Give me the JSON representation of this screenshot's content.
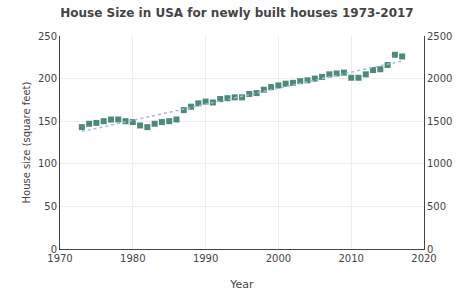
{
  "chart_data": {
    "type": "scatter",
    "title": "House Size in USA for newly built houses 1973-2017",
    "xlabel": "Year",
    "ylabel": "House size (square feet)",
    "series": [
      {
        "type": "scatter",
        "color": "#4d8a7a",
        "marker": "square",
        "x": [
          1973,
          1974,
          1975,
          1976,
          1977,
          1978,
          1979,
          1980,
          1981,
          1982,
          1983,
          1984,
          1985,
          1986,
          1987,
          1988,
          1989,
          1990,
          1991,
          1992,
          1993,
          1994,
          1995,
          1996,
          1997,
          1998,
          1999,
          2000,
          2001,
          2002,
          2003,
          2004,
          2005,
          2006,
          2007,
          2008,
          2009,
          2010,
          2011,
          2012,
          2013,
          2014,
          2015,
          2016,
          2017
        ],
        "values": [
          143,
          147,
          148,
          150,
          152,
          152,
          150,
          149,
          145,
          143,
          147,
          149,
          150,
          152,
          163,
          167,
          171,
          173,
          172,
          176,
          177,
          178,
          178,
          182,
          183,
          187,
          190,
          192,
          194,
          195,
          197,
          198,
          200,
          202,
          205,
          206,
          207,
          201,
          201,
          205,
          210,
          211,
          216,
          228,
          226
        ]
      },
      {
        "type": "line",
        "color": "#a0bfd8",
        "line_style": "dotted",
        "x": [
          1973,
          2017
        ],
        "values": [
          137.8715,
          220.7063
        ]
      }
    ],
    "xlim": [
      1970,
      2020
    ],
    "xticks": [
      1970,
      1980,
      1990,
      2000,
      2010,
      2020
    ],
    "ylim": [
      0,
      250
    ],
    "yticks": [
      0,
      50,
      100,
      150,
      200,
      250
    ],
    "y2lim": [
      0,
      2500
    ],
    "y2ticks": [
      0,
      500,
      1000,
      1500,
      2000,
      2500
    ],
    "grid": true
  }
}
